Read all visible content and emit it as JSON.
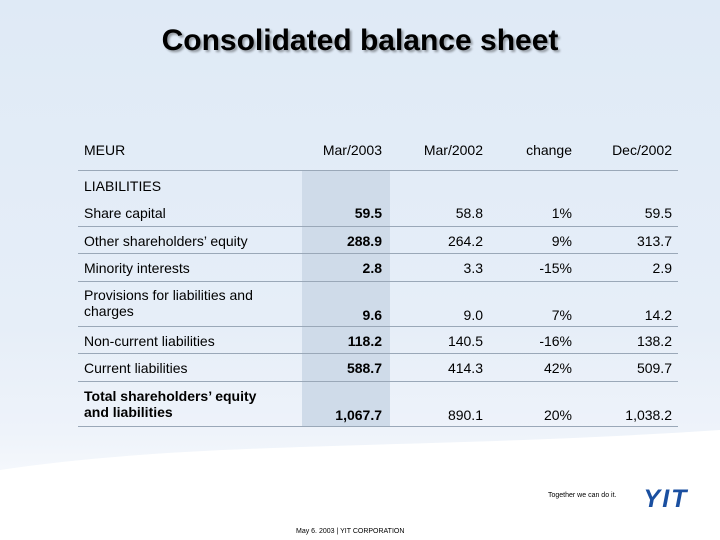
{
  "title": "Consolidated balance sheet",
  "columns": [
    "MEUR",
    "Mar/2003",
    "Mar/2002",
    "change",
    "Dec/2002"
  ],
  "section_label": "LIABILITIES",
  "rows": [
    {
      "label": "Share capital",
      "mar2003": "59.5",
      "mar2002": "58.8",
      "change": "1%",
      "dec2002": "59.5"
    },
    {
      "label": "Other shareholders’ equity",
      "mar2003": "288.9",
      "mar2002": "264.2",
      "change": "9%",
      "dec2002": "313.7"
    },
    {
      "label": "Minority interests",
      "mar2003": "2.8",
      "mar2002": "3.3",
      "change": "-15%",
      "dec2002": "2.9"
    },
    {
      "label": "Provisions for liabilities and charges",
      "mar2003": "9.6",
      "mar2002": "9.0",
      "change": "7%",
      "dec2002": "14.2"
    },
    {
      "label": "Non-current liabilities",
      "mar2003": "118.2",
      "mar2002": "140.5",
      "change": "-16%",
      "dec2002": "138.2"
    },
    {
      "label": "Current liabilities",
      "mar2003": "588.7",
      "mar2002": "414.3",
      "change": "42%",
      "dec2002": "509.7"
    },
    {
      "label": "Total shareholders’ equity and liabilities",
      "mar2003": "1,067.7",
      "mar2002": "890.1",
      "change": "20%",
      "dec2002": "1,038.2"
    }
  ],
  "footer": {
    "slogan": "Together we can do it.",
    "logo_text": "YIT",
    "date_corp": "May 6. 2003  |    YIT CORPORATION"
  },
  "colors": {
    "background": "#dfeaf6",
    "shaded_column": "#cfdbe9",
    "logo_blue": "#1a4fa0"
  }
}
